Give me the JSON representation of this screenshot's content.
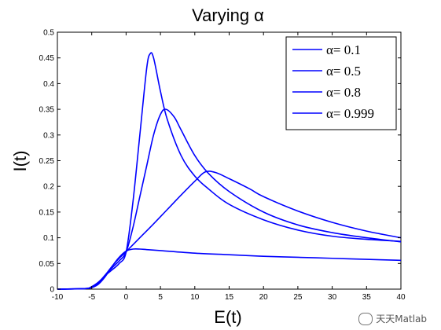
{
  "chart_data": {
    "type": "line",
    "title": "Varying α",
    "xlabel": "E(t)",
    "ylabel": "I(t)",
    "xlim": [
      -10,
      40
    ],
    "ylim": [
      0,
      0.5
    ],
    "xticks": [
      "-10",
      "-5",
      "0",
      "5",
      "10",
      "15",
      "20",
      "25",
      "30",
      "35",
      "40"
    ],
    "yticks": [
      "0",
      "0.05",
      "0.1",
      "0.15",
      "0.2",
      "0.25",
      "0.3",
      "0.35",
      "0.4",
      "0.45",
      "0.5"
    ],
    "grid": false,
    "legend_position": "top-right",
    "line_color": "#0000ff",
    "series": [
      {
        "name": "α= 0.1",
        "x": [
          -10,
          -6,
          -5,
          -4,
          -3,
          -2,
          -1,
          0,
          1,
          2,
          3,
          5,
          10,
          15,
          20,
          25,
          30,
          35,
          40
        ],
        "y": [
          0,
          0.001,
          0.003,
          0.01,
          0.025,
          0.045,
          0.062,
          0.074,
          0.078,
          0.078,
          0.077,
          0.075,
          0.07,
          0.067,
          0.064,
          0.062,
          0.06,
          0.058,
          0.056
        ]
      },
      {
        "name": "α= 0.5",
        "x": [
          -10,
          -6,
          -5,
          -4,
          -3,
          -2,
          -1,
          0,
          2,
          4,
          6,
          8,
          10,
          11.5,
          13,
          15,
          18,
          20,
          25,
          30,
          35,
          40
        ],
        "y": [
          0,
          0.001,
          0.004,
          0.012,
          0.028,
          0.045,
          0.06,
          0.073,
          0.1,
          0.127,
          0.155,
          0.183,
          0.21,
          0.228,
          0.227,
          0.215,
          0.195,
          0.18,
          0.152,
          0.13,
          0.113,
          0.1
        ]
      },
      {
        "name": "α= 0.8",
        "x": [
          -10,
          -6,
          -5,
          -4,
          -3,
          -2,
          -1,
          0,
          1,
          2,
          3,
          4,
          5,
          5.8,
          7,
          8,
          10,
          12,
          15,
          20,
          25,
          30,
          35,
          40
        ],
        "y": [
          0,
          0.001,
          0.004,
          0.013,
          0.028,
          0.042,
          0.055,
          0.072,
          0.12,
          0.18,
          0.24,
          0.3,
          0.34,
          0.35,
          0.335,
          0.31,
          0.26,
          0.225,
          0.19,
          0.15,
          0.125,
          0.11,
          0.1,
          0.092
        ]
      },
      {
        "name": "α= 0.999",
        "x": [
          -10,
          -6,
          -5,
          -4,
          -3,
          -2,
          -1,
          0,
          1,
          2,
          3,
          3.5,
          4,
          5,
          6,
          8,
          10,
          12,
          15,
          20,
          25,
          30,
          35,
          40
        ],
        "y": [
          0,
          0.001,
          0.005,
          0.014,
          0.027,
          0.038,
          0.05,
          0.072,
          0.17,
          0.3,
          0.43,
          0.458,
          0.45,
          0.385,
          0.33,
          0.26,
          0.22,
          0.195,
          0.165,
          0.135,
          0.115,
          0.103,
          0.097,
          0.093
        ]
      }
    ]
  },
  "watermark": {
    "text": "天天Matlab",
    "icon": "chat-bubble-icon"
  }
}
